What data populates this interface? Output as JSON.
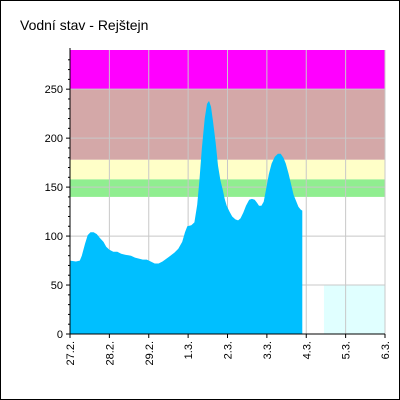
{
  "chart_data": {
    "type": "area",
    "title": "Vodní stav - Rejštejn",
    "xlabel": "",
    "ylabel": "",
    "xlim": [
      0,
      8
    ],
    "ylim": [
      0,
      290
    ],
    "y_ticks": [
      0,
      50,
      100,
      150,
      200,
      250
    ],
    "x_ticks": [
      {
        "pos": 0,
        "label": "27.2."
      },
      {
        "pos": 1,
        "label": "28.2."
      },
      {
        "pos": 2,
        "label": "29.2."
      },
      {
        "pos": 3,
        "label": "1.3."
      },
      {
        "pos": 4,
        "label": "2.3."
      },
      {
        "pos": 5,
        "label": "3.3."
      },
      {
        "pos": 6,
        "label": "4.3."
      },
      {
        "pos": 7,
        "label": "5.3."
      },
      {
        "pos": 8,
        "label": "6.3."
      }
    ],
    "grid": true,
    "bands": [
      {
        "from": 140,
        "to": 158,
        "color": "#90ee90"
      },
      {
        "from": 158,
        "to": 178,
        "color": "#ffffc8"
      },
      {
        "from": 178,
        "to": 250,
        "color": "#d4a8a8"
      },
      {
        "from": 250,
        "to": 290,
        "color": "#ff00ff"
      }
    ],
    "forecast_band": {
      "from_x": 6.45,
      "to_x": 8,
      "level": 50,
      "color": "#e0ffff"
    },
    "series": [
      {
        "color": "#00bfff",
        "points": [
          [
            0.0,
            75
          ],
          [
            0.15,
            74
          ],
          [
            0.25,
            75
          ],
          [
            0.3,
            80
          ],
          [
            0.38,
            92
          ],
          [
            0.45,
            101
          ],
          [
            0.52,
            104
          ],
          [
            0.6,
            104
          ],
          [
            0.68,
            102
          ],
          [
            0.76,
            98
          ],
          [
            0.85,
            94
          ],
          [
            0.92,
            89
          ],
          [
            1.0,
            86
          ],
          [
            1.1,
            84
          ],
          [
            1.2,
            84
          ],
          [
            1.3,
            82
          ],
          [
            1.4,
            81
          ],
          [
            1.55,
            80
          ],
          [
            1.65,
            78
          ],
          [
            1.75,
            77
          ],
          [
            1.85,
            76
          ],
          [
            1.95,
            76
          ],
          [
            2.05,
            74
          ],
          [
            2.15,
            72
          ],
          [
            2.25,
            72
          ],
          [
            2.35,
            74
          ],
          [
            2.45,
            77
          ],
          [
            2.55,
            80
          ],
          [
            2.65,
            83
          ],
          [
            2.75,
            87
          ],
          [
            2.85,
            94
          ],
          [
            2.92,
            104
          ],
          [
            2.98,
            110
          ],
          [
            3.08,
            111
          ],
          [
            3.16,
            114
          ],
          [
            3.23,
            132
          ],
          [
            3.29,
            158
          ],
          [
            3.35,
            190
          ],
          [
            3.42,
            220
          ],
          [
            3.48,
            235
          ],
          [
            3.53,
            238
          ],
          [
            3.58,
            232
          ],
          [
            3.63,
            218
          ],
          [
            3.7,
            195
          ],
          [
            3.76,
            172
          ],
          [
            3.82,
            157
          ],
          [
            3.88,
            147
          ],
          [
            3.93,
            138
          ],
          [
            3.98,
            131
          ],
          [
            4.05,
            125
          ],
          [
            4.12,
            120
          ],
          [
            4.2,
            117
          ],
          [
            4.27,
            116
          ],
          [
            4.33,
            118
          ],
          [
            4.4,
            124
          ],
          [
            4.47,
            131
          ],
          [
            4.55,
            137
          ],
          [
            4.62,
            138
          ],
          [
            4.69,
            137
          ],
          [
            4.75,
            134
          ],
          [
            4.8,
            131
          ],
          [
            4.86,
            131
          ],
          [
            4.92,
            135
          ],
          [
            4.98,
            148
          ],
          [
            5.05,
            163
          ],
          [
            5.12,
            174
          ],
          [
            5.2,
            181
          ],
          [
            5.28,
            184
          ],
          [
            5.35,
            184
          ],
          [
            5.42,
            180
          ],
          [
            5.48,
            174
          ],
          [
            5.55,
            164
          ],
          [
            5.62,
            152
          ],
          [
            5.68,
            142
          ],
          [
            5.74,
            136
          ],
          [
            5.8,
            130
          ],
          [
            5.86,
            127
          ],
          [
            5.9,
            126
          ]
        ]
      }
    ]
  }
}
